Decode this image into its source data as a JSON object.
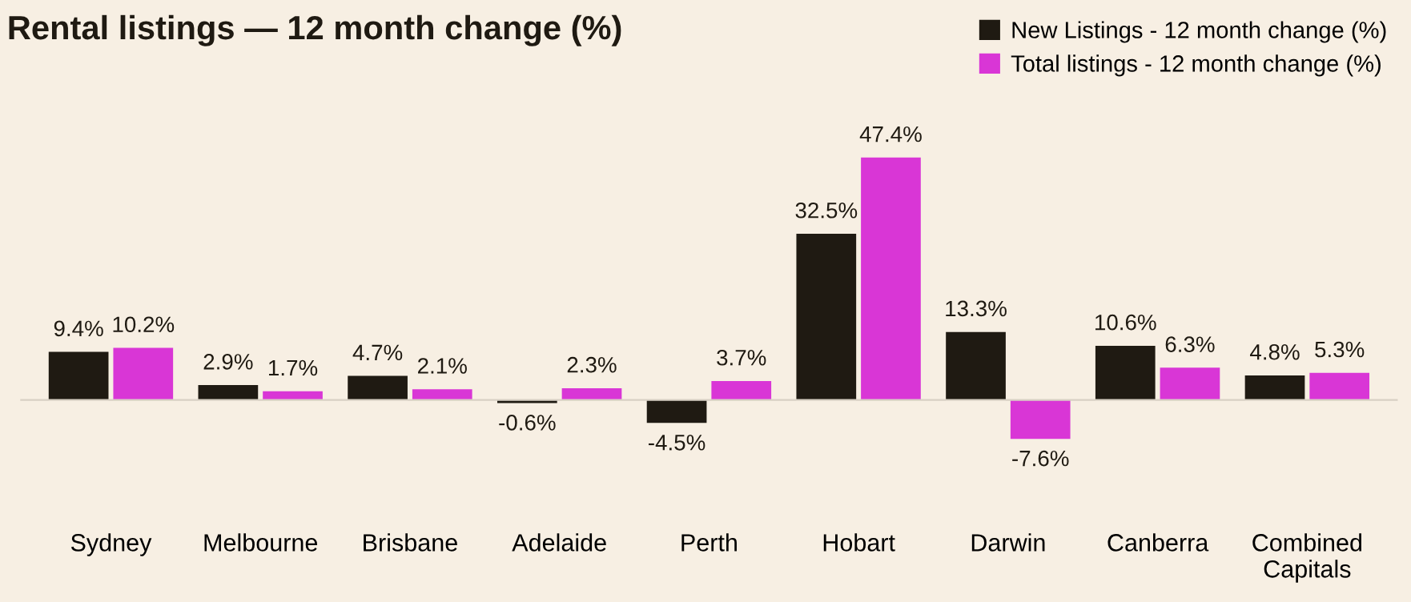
{
  "chart_data": {
    "type": "bar",
    "title": "Rental listings — 12 month change (%)",
    "categories": [
      "Sydney",
      "Melbourne",
      "Brisbane",
      "Adelaide",
      "Perth",
      "Hobart",
      "Darwin",
      "Canberra",
      "Combined\nCapitals"
    ],
    "series": [
      {
        "name": "New Listings - 12 month change (%)",
        "color": "#1f1a12",
        "values": [
          9.4,
          2.9,
          4.7,
          -0.6,
          -4.5,
          32.5,
          13.3,
          10.6,
          4.8
        ],
        "value_labels": [
          "9.4%",
          "2.9%",
          "4.7%",
          "-0.6%",
          "-4.5%",
          "32.5%",
          "13.3%",
          "10.6%",
          "4.8%"
        ]
      },
      {
        "name": "Total listings - 12 month change (%)",
        "color": "#d936d6",
        "values": [
          10.2,
          1.7,
          2.1,
          2.3,
          3.7,
          47.4,
          -7.6,
          6.3,
          5.3
        ],
        "value_labels": [
          "10.2%",
          "1.7%",
          "2.1%",
          "2.3%",
          "3.7%",
          "47.4%",
          "-7.6%",
          "6.3%",
          "5.3%"
        ]
      }
    ],
    "legend": "top right",
    "grid": false
  }
}
